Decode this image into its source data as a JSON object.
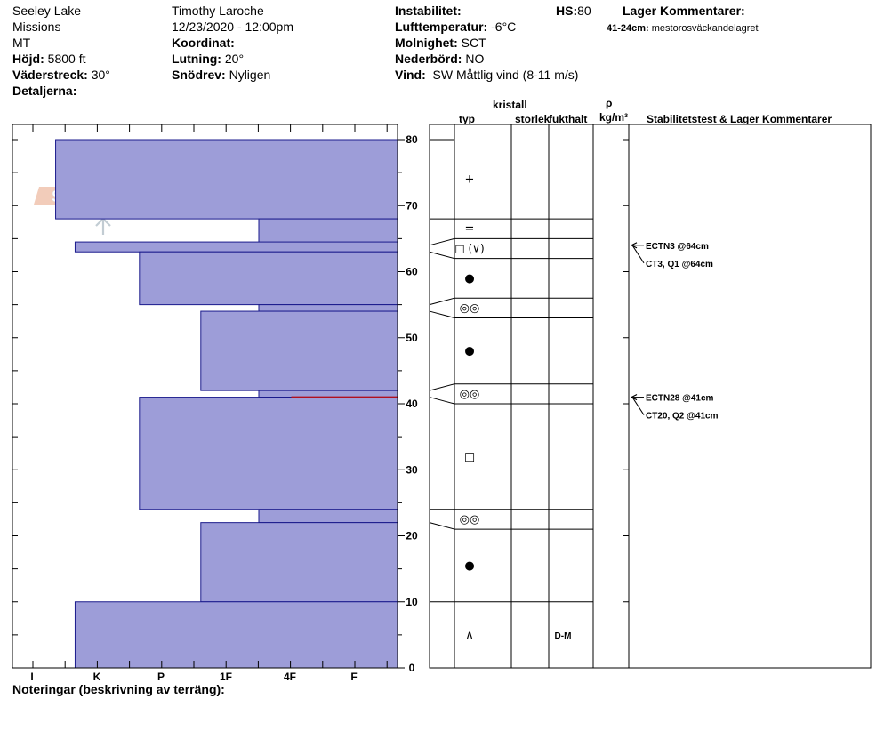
{
  "header": {
    "location_lines": [
      "Seeley Lake",
      "Missions",
      "MT"
    ],
    "elevation_label": "Höjd:",
    "elevation_value": "5800 ft",
    "aspect_label": "Väderstreck:",
    "aspect_value": "30°",
    "details_label": "Detaljerna:",
    "observer": "Timothy  Laroche",
    "datetime": "12/23/2020 - 12:00pm",
    "coordinate_label": "Koordinat:",
    "slope_label": "Lutning:",
    "slope_value": "20°",
    "wind_loading_label": "Snödrev:",
    "wind_loading_value": "Nyligen",
    "instability_label": "Instabilitet:",
    "hs_label": "HS:",
    "hs_value": "80",
    "air_temp_label": "Lufttemperatur:",
    "air_temp_value": "-6°C",
    "sky_label": "Molnighet:",
    "sky_value": "SCT",
    "precip_label": "Nederbörd:",
    "precip_value": "NO",
    "wind_label": "Vind:",
    "wind_value": "SW  Måttlig vind (8-11 m/s)",
    "layer_comments_title": "Lager Kommentarer:",
    "layer_comment_range": "41-24cm:",
    "layer_comment_text": "mestorosväckandelagret"
  },
  "columns": {
    "crystal": "kristall",
    "type": "typ",
    "size": "storlek",
    "moisture": "fukthalt",
    "rho": "ρ",
    "density_unit": "kg/m³",
    "stability": "Stabilitetstest & Lager Kommentarer"
  },
  "logo_text": "SNOW PILOT",
  "notes_label": "Noteringar (beskrivning av terräng):",
  "chart_data": {
    "type": "bar",
    "description_axis": "snow depth (cm)",
    "hardness_scale": [
      "I",
      "K",
      "P",
      "1F",
      "4F",
      "F"
    ],
    "y_ticks": [
      0,
      10,
      20,
      30,
      40,
      50,
      60,
      70,
      80
    ],
    "ylim": [
      0,
      80
    ],
    "hardness_profile": [
      {
        "top": 80,
        "bottom": 68,
        "hardness": 0.35
      },
      {
        "top": 68,
        "bottom": 64,
        "hardness": 3.5
      },
      {
        "top": 64.5,
        "bottom": 63,
        "hardness": 0.65
      },
      {
        "top": 63,
        "bottom": 55,
        "hardness": 1.65
      },
      {
        "top": 55,
        "bottom": 54,
        "hardness": 3.5
      },
      {
        "top": 54,
        "bottom": 42,
        "hardness": 2.6
      },
      {
        "top": 42,
        "bottom": 41,
        "hardness": 3.5
      },
      {
        "top": 41,
        "bottom": 24,
        "hardness": 1.65
      },
      {
        "top": 24,
        "bottom": 22,
        "hardness": 3.5
      },
      {
        "top": 22,
        "bottom": 10,
        "hardness": 2.6
      },
      {
        "top": 10,
        "bottom": 0,
        "hardness": 0.65
      }
    ],
    "weak_layer_depth": 41,
    "layers": [
      {
        "top": 80,
        "bottom": 68,
        "symbol": "+",
        "moisture": ""
      },
      {
        "top": 68,
        "bottom": 65,
        "symbol": "=",
        "moisture": ""
      },
      {
        "top": 65,
        "bottom": 62,
        "symbol": "□ (∨)",
        "moisture": ""
      },
      {
        "top": 62,
        "bottom": 56,
        "symbol": "●",
        "moisture": ""
      },
      {
        "top": 56,
        "bottom": 53,
        "symbol": "◎◎",
        "moisture": ""
      },
      {
        "top": 53,
        "bottom": 43,
        "symbol": "●",
        "moisture": ""
      },
      {
        "top": 43,
        "bottom": 40,
        "symbol": "◎◎",
        "moisture": ""
      },
      {
        "top": 40,
        "bottom": 24,
        "symbol": "□",
        "moisture": ""
      },
      {
        "top": 24,
        "bottom": 21,
        "symbol": "◎◎",
        "moisture": ""
      },
      {
        "top": 21,
        "bottom": 10,
        "symbol": "●",
        "moisture": ""
      },
      {
        "top": 10,
        "bottom": 0,
        "symbol": "∧",
        "moisture": "D-M"
      }
    ],
    "tests": [
      {
        "depth": 64,
        "label": "ECTN3 @64cm"
      },
      {
        "depth": 64,
        "label": "CT3, Q1 @64cm"
      },
      {
        "depth": 41,
        "label": "ECTN28 @41cm"
      },
      {
        "depth": 41,
        "label": "CT20, Q2 @41cm"
      }
    ]
  }
}
